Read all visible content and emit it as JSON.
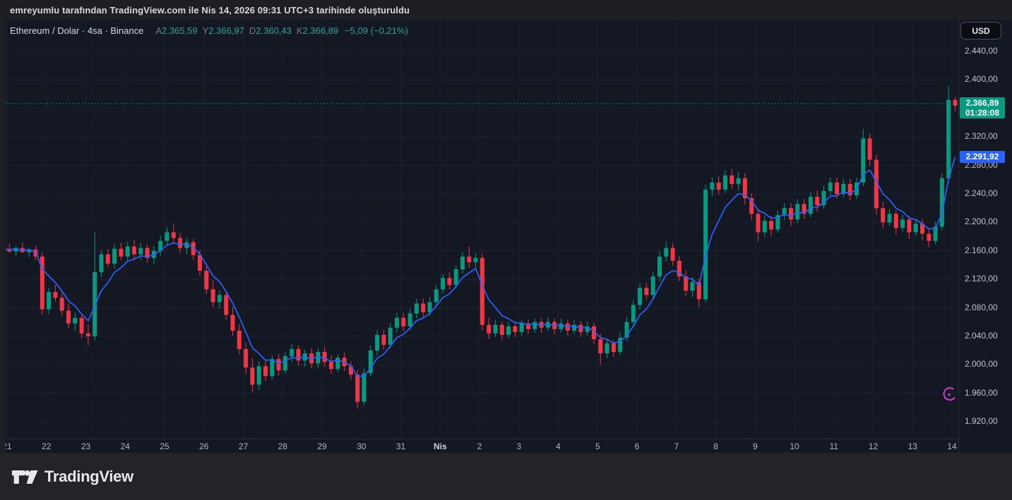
{
  "attribution": {
    "text": "emreyumlu tarafından TradingView.com ile Nis 14, 2026 09:31 UTC+3 tarihinde oluşturuldu"
  },
  "legend": {
    "symbol_title": "Ethereum / Dolar · 4sa · Binance",
    "open_label": "A",
    "open": "2.365,59",
    "high_label": "Y",
    "high": "2.366,97",
    "low_label": "D",
    "low": "2.360,43",
    "close_label": "K",
    "close": "2.366,89",
    "change": "−5,09 (−0,21%)"
  },
  "price_axis": {
    "currency_button": "USD",
    "labels": [
      {
        "text": "2.440,00",
        "value": 2440
      },
      {
        "text": "2.400,00",
        "value": 2400
      },
      {
        "text": "2.320,00",
        "value": 2320
      },
      {
        "text": "2.280,00",
        "value": 2280
      },
      {
        "text": "2.240,00",
        "value": 2240
      },
      {
        "text": "2.200,00",
        "value": 2200
      },
      {
        "text": "2.160,00",
        "value": 2160
      },
      {
        "text": "2.120,00",
        "value": 2120
      },
      {
        "text": "2.080,00",
        "value": 2080
      },
      {
        "text": "2.040,00",
        "value": 2040
      },
      {
        "text": "2.000,00",
        "value": 2000
      },
      {
        "text": "1.960,00",
        "value": 1960
      },
      {
        "text": "1.920,00",
        "value": 1920
      }
    ],
    "last_price_badge": {
      "price": "2.366,89",
      "countdown": "01:28:08",
      "value": 2366.89
    },
    "ma_badge": {
      "price": "2.291,92",
      "value": 2291.92
    }
  },
  "time_axis": {
    "labels": [
      "21",
      "22",
      "23",
      "24",
      "25",
      "26",
      "27",
      "28",
      "29",
      "30",
      "31",
      "Nis",
      "2",
      "3",
      "4",
      "5",
      "6",
      "7",
      "8",
      "9",
      "10",
      "11",
      "12",
      "13",
      "14"
    ],
    "month_label": "Nis"
  },
  "footer": {
    "brand": "TradingView"
  },
  "colors": {
    "up": "#089981",
    "down": "#f23645",
    "ma_line": "#2962ff",
    "last_price_line": "#089981",
    "badge_last": "#089981",
    "badge_ma": "#2962ff",
    "background": "#141823",
    "annotation": "#cf3fd6"
  },
  "chart_data": {
    "type": "candlestick",
    "title": "Ethereum / Dolar · 4sa · Binance",
    "pair": "Ethereum / Dolar",
    "interval": "4sa",
    "exchange": "Binance",
    "currency": "USD",
    "last_price": 2366.89,
    "ma_last_value": 2291.92,
    "x_tick_labels": [
      "21",
      "22",
      "23",
      "24",
      "25",
      "26",
      "27",
      "28",
      "29",
      "30",
      "31",
      "Nis",
      "2",
      "3",
      "4",
      "5",
      "6",
      "7",
      "8",
      "9",
      "10",
      "11",
      "12",
      "13",
      "14"
    ],
    "y_axis": {
      "range": [
        1905,
        2450
      ],
      "gridline_values": [
        2440,
        2400,
        2360,
        2320,
        2280,
        2240,
        2200,
        2160,
        2120,
        2080,
        2040,
        2000,
        1960,
        1920
      ]
    },
    "overlays": [
      {
        "type": "moving-average",
        "color": "#2962ff"
      }
    ],
    "annotations": [
      {
        "type": "partial-circle",
        "x_index": 144.2,
        "price": 1959,
        "note": "magenta circle sticker at lower right"
      }
    ],
    "candles_format": [
      "open",
      "high",
      "low",
      "close"
    ],
    "candles": [
      [
        2160,
        2168,
        2154,
        2163
      ],
      [
        2163,
        2170,
        2157,
        2159
      ],
      [
        2159,
        2166,
        2153,
        2164
      ],
      [
        2164,
        2172,
        2159,
        2158
      ],
      [
        2158,
        2165,
        2151,
        2162
      ],
      [
        2162,
        2167,
        2147,
        2152
      ],
      [
        2152,
        2158,
        2070,
        2078
      ],
      [
        2078,
        2108,
        2071,
        2102
      ],
      [
        2102,
        2112,
        2089,
        2094
      ],
      [
        2094,
        2101,
        2069,
        2076
      ],
      [
        2076,
        2086,
        2051,
        2058
      ],
      [
        2058,
        2073,
        2047,
        2066
      ],
      [
        2066,
        2070,
        2037,
        2044
      ],
      [
        2044,
        2057,
        2027,
        2040
      ],
      [
        2040,
        2186,
        2034,
        2130
      ],
      [
        2130,
        2161,
        2123,
        2155
      ],
      [
        2155,
        2163,
        2137,
        2142
      ],
      [
        2142,
        2169,
        2135,
        2163
      ],
      [
        2163,
        2171,
        2147,
        2152
      ],
      [
        2152,
        2173,
        2145,
        2166
      ],
      [
        2166,
        2175,
        2149,
        2155
      ],
      [
        2155,
        2171,
        2147,
        2164
      ],
      [
        2164,
        2169,
        2143,
        2150
      ],
      [
        2150,
        2167,
        2141,
        2160
      ],
      [
        2160,
        2181,
        2153,
        2174
      ],
      [
        2174,
        2193,
        2167,
        2186
      ],
      [
        2186,
        2197,
        2171,
        2178
      ],
      [
        2178,
        2185,
        2157,
        2164
      ],
      [
        2164,
        2179,
        2155,
        2172
      ],
      [
        2172,
        2177,
        2147,
        2154
      ],
      [
        2154,
        2161,
        2125,
        2132
      ],
      [
        2132,
        2139,
        2099,
        2106
      ],
      [
        2106,
        2119,
        2081,
        2088
      ],
      [
        2088,
        2105,
        2079,
        2098
      ],
      [
        2098,
        2103,
        2063,
        2070
      ],
      [
        2070,
        2081,
        2041,
        2048
      ],
      [
        2048,
        2057,
        2015,
        2022
      ],
      [
        2022,
        2031,
        1987,
        1996
      ],
      [
        1996,
        2009,
        1961,
        1972
      ],
      [
        1972,
        2005,
        1965,
        1998
      ],
      [
        1998,
        2007,
        1977,
        1984
      ],
      [
        1984,
        2013,
        1979,
        2008
      ],
      [
        2008,
        2015,
        1985,
        1992
      ],
      [
        1992,
        2017,
        1987,
        2012
      ],
      [
        2012,
        2029,
        2003,
        2022
      ],
      [
        2022,
        2027,
        1999,
        2006
      ],
      [
        2006,
        2021,
        1997,
        2016
      ],
      [
        2016,
        2023,
        1995,
        2002
      ],
      [
        2002,
        2023,
        1995,
        2018
      ],
      [
        2018,
        2025,
        1997,
        2004
      ],
      [
        2004,
        2013,
        1987,
        1994
      ],
      [
        1994,
        2015,
        1989,
        2010
      ],
      [
        2010,
        2017,
        1991,
        1998
      ],
      [
        1998,
        2005,
        1979,
        1986
      ],
      [
        1986,
        1993,
        1938,
        1948
      ],
      [
        1948,
        1995,
        1943,
        1988
      ],
      [
        1988,
        2027,
        1983,
        2020
      ],
      [
        2020,
        2049,
        2013,
        2042
      ],
      [
        2042,
        2049,
        2021,
        2028
      ],
      [
        2028,
        2059,
        2023,
        2052
      ],
      [
        2052,
        2073,
        2045,
        2066
      ],
      [
        2066,
        2073,
        2047,
        2054
      ],
      [
        2054,
        2079,
        2049,
        2072
      ],
      [
        2072,
        2093,
        2065,
        2086
      ],
      [
        2086,
        2093,
        2067,
        2074
      ],
      [
        2074,
        2095,
        2069,
        2088
      ],
      [
        2088,
        2112,
        2082,
        2106
      ],
      [
        2106,
        2128,
        2100,
        2122
      ],
      [
        2122,
        2130,
        2106,
        2112
      ],
      [
        2112,
        2140,
        2108,
        2134
      ],
      [
        2134,
        2158,
        2128,
        2152
      ],
      [
        2152,
        2166,
        2136,
        2144
      ],
      [
        2144,
        2157,
        2136,
        2150
      ],
      [
        2150,
        2156,
        2048,
        2056
      ],
      [
        2056,
        2066,
        2036,
        2044
      ],
      [
        2044,
        2063,
        2039,
        2056
      ],
      [
        2056,
        2061,
        2035,
        2042
      ],
      [
        2042,
        2061,
        2037,
        2054
      ],
      [
        2054,
        2061,
        2039,
        2046
      ],
      [
        2046,
        2063,
        2041,
        2058
      ],
      [
        2058,
        2063,
        2043,
        2050
      ],
      [
        2050,
        2065,
        2045,
        2060
      ],
      [
        2060,
        2065,
        2045,
        2052
      ],
      [
        2052,
        2067,
        2047,
        2060
      ],
      [
        2060,
        2065,
        2043,
        2050
      ],
      [
        2050,
        2065,
        2045,
        2058
      ],
      [
        2058,
        2063,
        2041,
        2048
      ],
      [
        2048,
        2063,
        2043,
        2056
      ],
      [
        2056,
        2061,
        2039,
        2046
      ],
      [
        2046,
        2061,
        2041,
        2054
      ],
      [
        2054,
        2059,
        2029,
        2036
      ],
      [
        2036,
        2043,
        2000,
        2016
      ],
      [
        2016,
        2037,
        2009,
        2030
      ],
      [
        2030,
        2035,
        2011,
        2018
      ],
      [
        2018,
        2045,
        2013,
        2038
      ],
      [
        2038,
        2067,
        2033,
        2060
      ],
      [
        2060,
        2091,
        2053,
        2084
      ],
      [
        2084,
        2115,
        2077,
        2108
      ],
      [
        2108,
        2115,
        2091,
        2098
      ],
      [
        2098,
        2131,
        2093,
        2124
      ],
      [
        2124,
        2159,
        2117,
        2152
      ],
      [
        2152,
        2173,
        2145,
        2164
      ],
      [
        2164,
        2171,
        2139,
        2146
      ],
      [
        2146,
        2153,
        2117,
        2124
      ],
      [
        2124,
        2133,
        2097,
        2104
      ],
      [
        2104,
        2123,
        2095,
        2116
      ],
      [
        2116,
        2121,
        2081,
        2092
      ],
      [
        2092,
        2253,
        2087,
        2246
      ],
      [
        2246,
        2263,
        2237,
        2256
      ],
      [
        2256,
        2265,
        2239,
        2246
      ],
      [
        2246,
        2273,
        2241,
        2266
      ],
      [
        2266,
        2275,
        2247,
        2254
      ],
      [
        2254,
        2271,
        2245,
        2262
      ],
      [
        2262,
        2269,
        2225,
        2234
      ],
      [
        2234,
        2241,
        2203,
        2212
      ],
      [
        2212,
        2219,
        2173,
        2186
      ],
      [
        2186,
        2209,
        2179,
        2202
      ],
      [
        2202,
        2209,
        2181,
        2190
      ],
      [
        2190,
        2217,
        2185,
        2210
      ],
      [
        2210,
        2227,
        2203,
        2220
      ],
      [
        2220,
        2227,
        2195,
        2204
      ],
      [
        2204,
        2233,
        2199,
        2226
      ],
      [
        2226,
        2233,
        2205,
        2212
      ],
      [
        2212,
        2243,
        2207,
        2236
      ],
      [
        2236,
        2245,
        2215,
        2224
      ],
      [
        2224,
        2251,
        2219,
        2244
      ],
      [
        2244,
        2263,
        2237,
        2256
      ],
      [
        2256,
        2263,
        2233,
        2240
      ],
      [
        2240,
        2261,
        2235,
        2254
      ],
      [
        2254,
        2261,
        2231,
        2238
      ],
      [
        2238,
        2263,
        2233,
        2256
      ],
      [
        2256,
        2331,
        2251,
        2318
      ],
      [
        2318,
        2325,
        2279,
        2288
      ],
      [
        2288,
        2295,
        2211,
        2220
      ],
      [
        2220,
        2229,
        2191,
        2200
      ],
      [
        2200,
        2219,
        2195,
        2212
      ],
      [
        2212,
        2217,
        2183,
        2192
      ],
      [
        2192,
        2211,
        2187,
        2204
      ],
      [
        2204,
        2209,
        2177,
        2186
      ],
      [
        2186,
        2205,
        2181,
        2198
      ],
      [
        2198,
        2205,
        2175,
        2184
      ],
      [
        2184,
        2191,
        2165,
        2174
      ],
      [
        2174,
        2201,
        2169,
        2194
      ],
      [
        2194,
        2269,
        2189,
        2262
      ],
      [
        2262,
        2392,
        2255,
        2372
      ],
      [
        2372,
        2376,
        2356,
        2364
      ]
    ]
  }
}
